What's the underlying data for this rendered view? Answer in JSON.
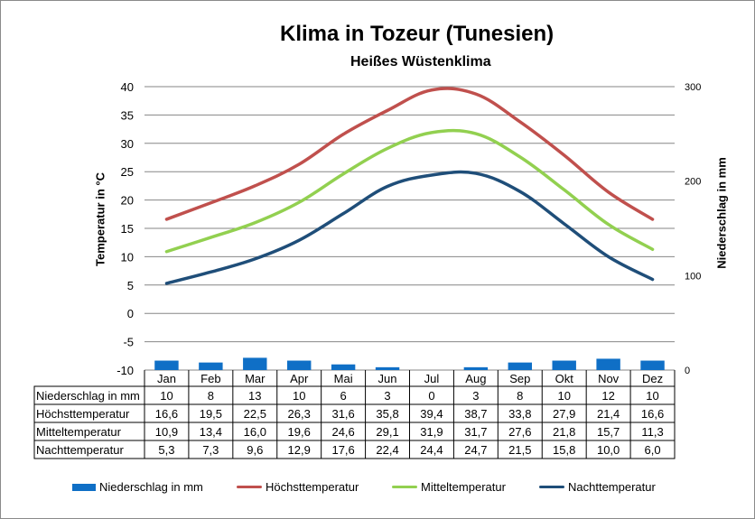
{
  "chart_data": {
    "type": "bar+line",
    "title": "Klima in Tozeur (Tunesien)",
    "subtitle": "Heißes Wüstenklima",
    "ylabel_left": "Temperatur in °C",
    "ylabel_right": "Niederschlag in mm",
    "categories": [
      "Jan",
      "Feb",
      "Mar",
      "Apr",
      "Mai",
      "Jun",
      "Jul",
      "Aug",
      "Sep",
      "Okt",
      "Nov",
      "Dez"
    ],
    "ylim_left": [
      -10,
      40
    ],
    "yticks_left": [
      "40",
      "35",
      "30",
      "25",
      "20",
      "15",
      "10",
      "5",
      "0",
      "-5",
      "-10"
    ],
    "ylim_right": [
      0,
      300
    ],
    "yticks_right": [
      "300",
      "200",
      "100",
      "0"
    ],
    "grid": true,
    "legend_position": "bottom",
    "series": [
      {
        "name": "Niederschlag in mm",
        "kind": "bar",
        "axis": "right",
        "color": "#0f6fc6",
        "values": [
          10,
          8,
          13,
          10,
          6,
          3,
          0,
          3,
          8,
          10,
          12,
          10
        ],
        "labels": [
          "10",
          "8",
          "13",
          "10",
          "6",
          "3",
          "0",
          "3",
          "8",
          "10",
          "12",
          "10"
        ]
      },
      {
        "name": "Höchsttemperatur",
        "kind": "line",
        "axis": "left",
        "color": "#c0504d",
        "values": [
          16.6,
          19.5,
          22.5,
          26.3,
          31.6,
          35.8,
          39.4,
          38.7,
          33.8,
          27.9,
          21.4,
          16.6
        ],
        "labels": [
          "16,6",
          "19,5",
          "22,5",
          "26,3",
          "31,6",
          "35,8",
          "39,4",
          "38,7",
          "33,8",
          "27,9",
          "21,4",
          "16,6"
        ]
      },
      {
        "name": "Mitteltemperatur",
        "kind": "line",
        "axis": "left",
        "color": "#92d050",
        "values": [
          10.9,
          13.4,
          16.0,
          19.6,
          24.6,
          29.1,
          31.9,
          31.7,
          27.6,
          21.8,
          15.7,
          11.3
        ],
        "labels": [
          "10,9",
          "13,4",
          "16,0",
          "19,6",
          "24,6",
          "29,1",
          "31,9",
          "31,7",
          "27,6",
          "21,8",
          "15,7",
          "11,3"
        ]
      },
      {
        "name": "Nachttemperatur",
        "kind": "line",
        "axis": "left",
        "color": "#1f4e79",
        "values": [
          5.3,
          7.3,
          9.6,
          12.9,
          17.6,
          22.4,
          24.4,
          24.7,
          21.5,
          15.8,
          10.0,
          6.0
        ],
        "labels": [
          "5,3",
          "7,3",
          "9,6",
          "12,9",
          "17,6",
          "22,4",
          "24,4",
          "24,7",
          "21,5",
          "15,8",
          "10,0",
          "6,0"
        ]
      }
    ]
  }
}
